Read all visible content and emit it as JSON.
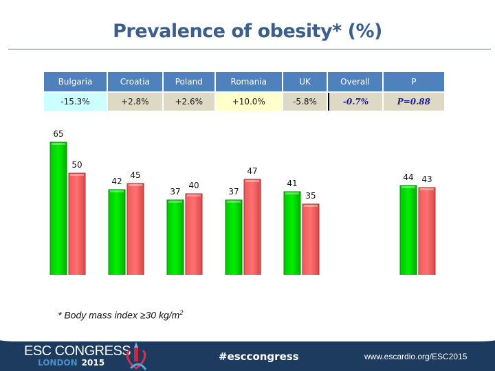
{
  "header": {
    "title": "Prevalence of obesity* (%)"
  },
  "table": {
    "columns": [
      "Bulgaria",
      "Croatia",
      "Poland",
      "Romania",
      "UK",
      "Overall",
      "P"
    ],
    "values": [
      "-15.3%",
      "+2.8%",
      "+2.6%",
      "+10.0%",
      "-5.8%",
      "-0.7%",
      "P=0.88"
    ]
  },
  "chart_data": {
    "type": "bar",
    "title": "Prevalence of obesity* (%)",
    "xlabel": "",
    "ylabel": "",
    "ylim": [
      0,
      65
    ],
    "grid": false,
    "categories": [
      "Bulgaria",
      "Croatia",
      "Poland",
      "Romania",
      "UK",
      "All"
    ],
    "series": [
      {
        "name": "green",
        "color": "#00e400",
        "values": [
          65,
          42,
          37,
          37,
          41,
          44
        ]
      },
      {
        "name": "red",
        "color": "#ff6b6b",
        "values": [
          50,
          45,
          40,
          47,
          35,
          43
        ]
      }
    ]
  },
  "footnote": {
    "text": "* Body mass index ≥30 kg/m",
    "superscript": "2"
  },
  "footer": {
    "logo_main": "ESC CONGRESS",
    "logo_city": "LONDON",
    "logo_year": "2015",
    "hashtag": "#esccongress",
    "url": "www.escardio.org/ESC2015"
  }
}
